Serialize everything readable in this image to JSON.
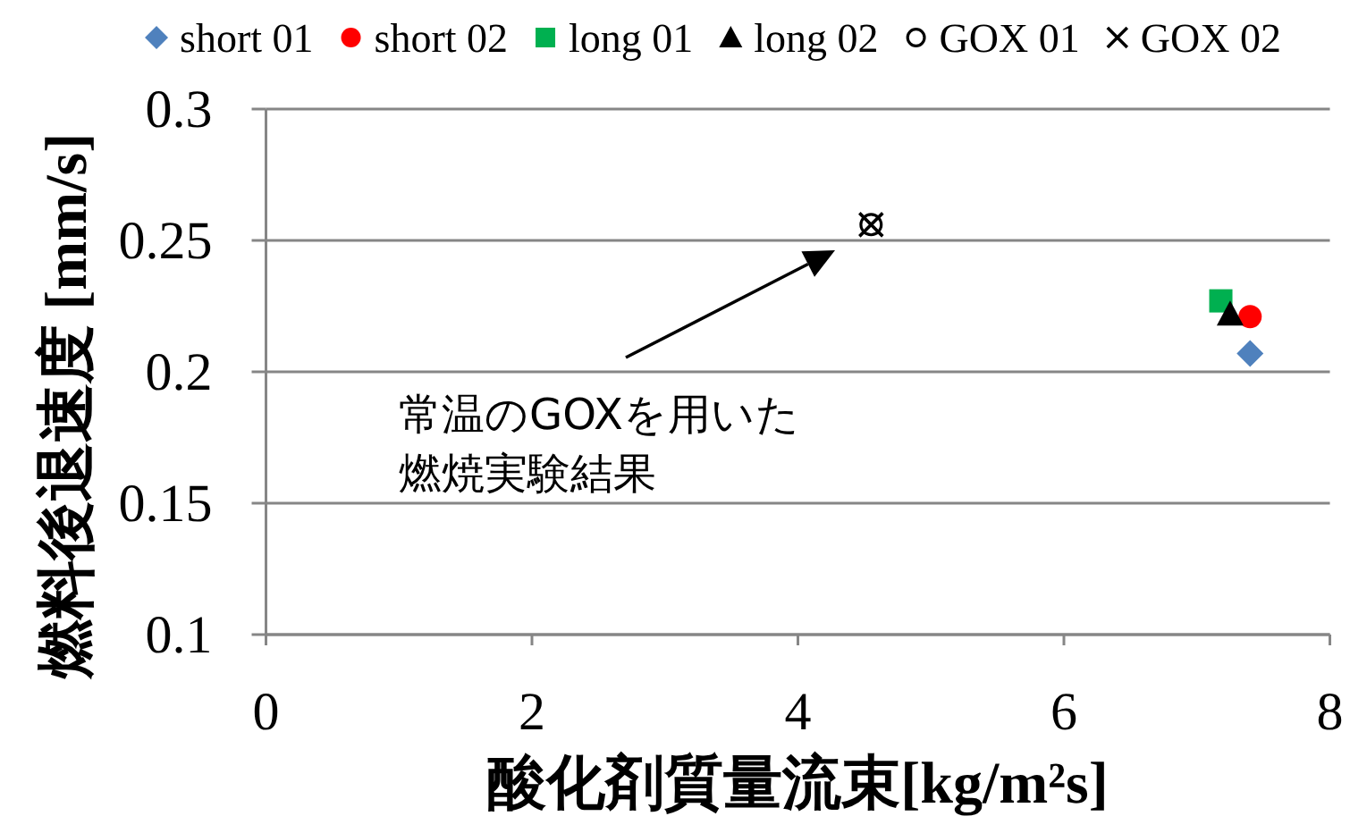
{
  "chart_data": {
    "type": "scatter",
    "xlabel": "酸化剤質量流束[kg/m²s]",
    "ylabel": "燃料後退速度  [mm/s]",
    "xlim": [
      0,
      8
    ],
    "xticks": [
      0,
      2,
      4,
      6,
      8
    ],
    "ylim": [
      0.1,
      0.3
    ],
    "yticks": [
      0.1,
      0.15,
      0.2,
      0.25,
      0.3
    ],
    "grid": "y",
    "legend": "top",
    "series": [
      {
        "name": "short 01",
        "color": "#4f81bd",
        "marker": "diamond",
        "x": [
          7.4
        ],
        "values": [
          0.207
        ]
      },
      {
        "name": "short 02",
        "color": "#ff0000",
        "marker": "circle",
        "x": [
          7.4
        ],
        "values": [
          0.221
        ]
      },
      {
        "name": "long 01",
        "color": "#00b050",
        "marker": "square",
        "x": [
          7.18
        ],
        "values": [
          0.227
        ]
      },
      {
        "name": "long 02",
        "color": "#000000",
        "marker": "triangle",
        "x": [
          7.25
        ],
        "values": [
          0.222
        ]
      },
      {
        "name": "GOX 01",
        "color": "#ffffff",
        "marker": "circle",
        "x": [
          4.55
        ],
        "values": [
          0.256
        ]
      },
      {
        "name": "GOX 02",
        "color": "#000000",
        "marker": "cross",
        "x": [
          4.55
        ],
        "values": [
          0.256
        ]
      }
    ],
    "annotations": [
      "常温のGOXを用いた燃焼実験結果"
    ]
  }
}
